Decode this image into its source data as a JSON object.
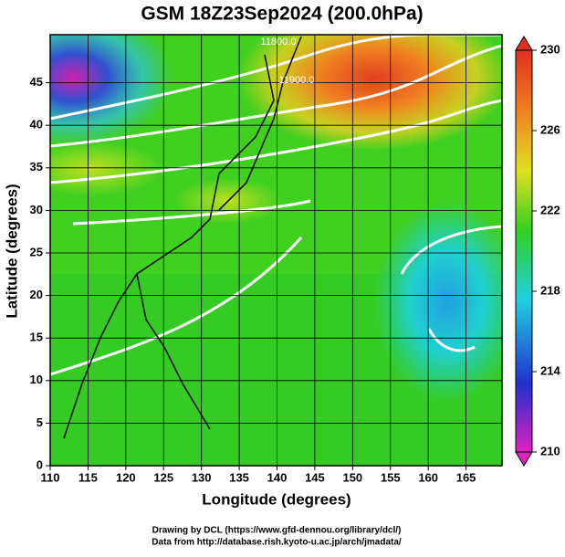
{
  "chart_data": {
    "type": "map",
    "title": "GSM 18Z23Sep2024 (200.0hPa)",
    "xlabel": "Longitude (degrees)",
    "ylabel": "Latitude  (degrees)",
    "xlim": [
      110,
      170
    ],
    "ylim": [
      0,
      50
    ],
    "xticks": [
      110,
      115,
      120,
      125,
      130,
      135,
      140,
      145,
      150,
      155,
      160,
      165
    ],
    "yticks": [
      0,
      5,
      10,
      15,
      20,
      25,
      30,
      35,
      40,
      45
    ],
    "grid": true,
    "colorbar": {
      "lim": [
        210,
        230
      ],
      "ticks": [
        210,
        214,
        218,
        222,
        226,
        230
      ],
      "colors": [
        "#e020c0",
        "#2030d0",
        "#20d0e0",
        "#30d020",
        "#e0e020",
        "#f08020",
        "#e03020"
      ]
    },
    "annotations": [
      "11800.0",
      "11900.0"
    ],
    "credits": [
      "Drawing by DCL (https://www.gfd-dennou.org/library/dcl/)",
      "Data from http://database.rish.kyoto-u.ac.jp/arch/jmadata/"
    ]
  }
}
